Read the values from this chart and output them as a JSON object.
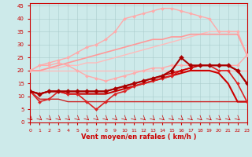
{
  "title": "",
  "xlabel": "Vent moyen/en rafales ( km/h )",
  "ylabel": "",
  "bg_color": "#cdeaea",
  "grid_color": "#aacccc",
  "xlim": [
    0,
    23
  ],
  "ylim": [
    0,
    46
  ],
  "yticks": [
    0,
    5,
    10,
    15,
    20,
    25,
    30,
    35,
    40,
    45
  ],
  "xticks": [
    0,
    1,
    2,
    3,
    4,
    5,
    6,
    7,
    8,
    9,
    10,
    11,
    12,
    13,
    14,
    15,
    16,
    17,
    18,
    19,
    20,
    21,
    22,
    23
  ],
  "series": [
    {
      "x": [
        0,
        1,
        2,
        3,
        4,
        5,
        6,
        7,
        8,
        9,
        10,
        11,
        12,
        13,
        14,
        15,
        16,
        17,
        18,
        19,
        20,
        21,
        22,
        23
      ],
      "y": [
        20,
        20,
        20,
        20,
        20,
        20,
        20,
        20,
        20,
        20,
        20,
        20,
        20,
        20,
        20,
        20,
        20,
        20,
        20,
        20,
        20,
        20,
        20,
        20
      ],
      "color": "#ffbbbb",
      "lw": 1.0,
      "marker": null,
      "ms": 0
    },
    {
      "x": [
        0,
        1,
        2,
        3,
        4,
        5,
        6,
        7,
        8,
        9,
        10,
        11,
        12,
        13,
        14,
        15,
        16,
        17,
        18,
        19,
        20,
        21,
        22,
        23
      ],
      "y": [
        20,
        20,
        21,
        21,
        22,
        22,
        23,
        23,
        24,
        25,
        26,
        27,
        28,
        29,
        30,
        31,
        32,
        33,
        34,
        35,
        35,
        35,
        35,
        26
      ],
      "color": "#ffbbbb",
      "lw": 1.0,
      "marker": null,
      "ms": 0
    },
    {
      "x": [
        0,
        1,
        2,
        3,
        4,
        5,
        6,
        7,
        8,
        9,
        10,
        11,
        12,
        13,
        14,
        15,
        16,
        17,
        18,
        19,
        20,
        21,
        22,
        23
      ],
      "y": [
        20,
        22,
        22,
        23,
        22,
        20,
        18,
        17,
        16,
        17,
        18,
        19,
        20,
        21,
        21,
        22,
        22,
        22,
        22,
        22,
        22,
        22,
        22,
        26
      ],
      "color": "#ffaaaa",
      "lw": 1.0,
      "marker": "D",
      "ms": 2
    },
    {
      "x": [
        0,
        1,
        2,
        3,
        4,
        5,
        6,
        7,
        8,
        9,
        10,
        11,
        12,
        13,
        14,
        15,
        16,
        17,
        18,
        19,
        20,
        21,
        22,
        23
      ],
      "y": [
        20,
        22,
        23,
        24,
        25,
        27,
        29,
        30,
        32,
        35,
        40,
        41,
        42,
        43,
        44,
        44,
        43,
        42,
        41,
        40,
        35,
        35,
        35,
        26
      ],
      "color": "#ffaaaa",
      "lw": 1.0,
      "marker": "D",
      "ms": 2
    },
    {
      "x": [
        0,
        1,
        2,
        3,
        4,
        5,
        6,
        7,
        8,
        9,
        10,
        11,
        12,
        13,
        14,
        15,
        16,
        17,
        18,
        19,
        20,
        21,
        22,
        23
      ],
      "y": [
        20,
        20,
        21,
        22,
        23,
        24,
        25,
        26,
        27,
        28,
        29,
        30,
        31,
        32,
        32,
        33,
        33,
        34,
        34,
        34,
        34,
        34,
        34,
        26
      ],
      "color": "#ff9999",
      "lw": 1.2,
      "marker": null,
      "ms": 0
    },
    {
      "x": [
        0,
        1,
        2,
        3,
        4,
        5,
        6,
        7,
        8,
        9,
        10,
        11,
        12,
        13,
        14,
        15,
        16,
        17,
        18,
        19,
        20,
        21,
        22,
        23
      ],
      "y": [
        12,
        9,
        9,
        9,
        8,
        8,
        8,
        8,
        8,
        8,
        8,
        8,
        8,
        8,
        8,
        8,
        8,
        8,
        8,
        8,
        8,
        8,
        8,
        8
      ],
      "color": "#cc2222",
      "lw": 1.0,
      "marker": null,
      "ms": 0
    },
    {
      "x": [
        0,
        1,
        2,
        3,
        4,
        5,
        6,
        7,
        8,
        9,
        10,
        11,
        12,
        13,
        14,
        15,
        16,
        17,
        18,
        19,
        20,
        21,
        22,
        23
      ],
      "y": [
        12,
        8,
        9,
        12,
        11,
        11,
        8,
        5,
        8,
        11,
        12,
        14,
        15,
        16,
        17,
        18,
        20,
        21,
        22,
        22,
        20,
        20,
        15,
        8
      ],
      "color": "#dd2222",
      "lw": 1.2,
      "marker": "D",
      "ms": 2
    },
    {
      "x": [
        0,
        1,
        2,
        3,
        4,
        5,
        6,
        7,
        8,
        9,
        10,
        11,
        12,
        13,
        14,
        15,
        16,
        17,
        18,
        19,
        20,
        21,
        22,
        23
      ],
      "y": [
        12,
        11,
        12,
        12,
        12,
        12,
        12,
        12,
        12,
        13,
        14,
        15,
        16,
        17,
        18,
        19,
        20,
        21,
        22,
        22,
        22,
        22,
        20,
        15
      ],
      "color": "#cc0000",
      "lw": 1.2,
      "marker": "D",
      "ms": 2
    },
    {
      "x": [
        0,
        1,
        2,
        3,
        4,
        5,
        6,
        7,
        8,
        9,
        10,
        11,
        12,
        13,
        14,
        15,
        16,
        17,
        18,
        19,
        20,
        21,
        22,
        23
      ],
      "y": [
        12,
        11,
        12,
        12,
        12,
        12,
        12,
        12,
        12,
        13,
        14,
        15,
        16,
        17,
        18,
        20,
        25,
        22,
        22,
        22,
        22,
        22,
        20,
        15
      ],
      "color": "#aa0000",
      "lw": 1.5,
      "marker": "D",
      "ms": 3
    },
    {
      "x": [
        0,
        1,
        2,
        3,
        4,
        5,
        6,
        7,
        8,
        9,
        10,
        11,
        12,
        13,
        14,
        15,
        16,
        17,
        18,
        19,
        20,
        21,
        22,
        23
      ],
      "y": [
        12,
        11,
        12,
        12,
        11,
        11,
        11,
        11,
        11,
        12,
        13,
        14,
        15,
        16,
        17,
        18,
        19,
        20,
        20,
        20,
        19,
        15,
        8,
        8
      ],
      "color": "#cc0000",
      "lw": 1.5,
      "marker": null,
      "ms": 0
    }
  ],
  "xlabel_color": "#cc0000",
  "tick_color": "#cc0000"
}
